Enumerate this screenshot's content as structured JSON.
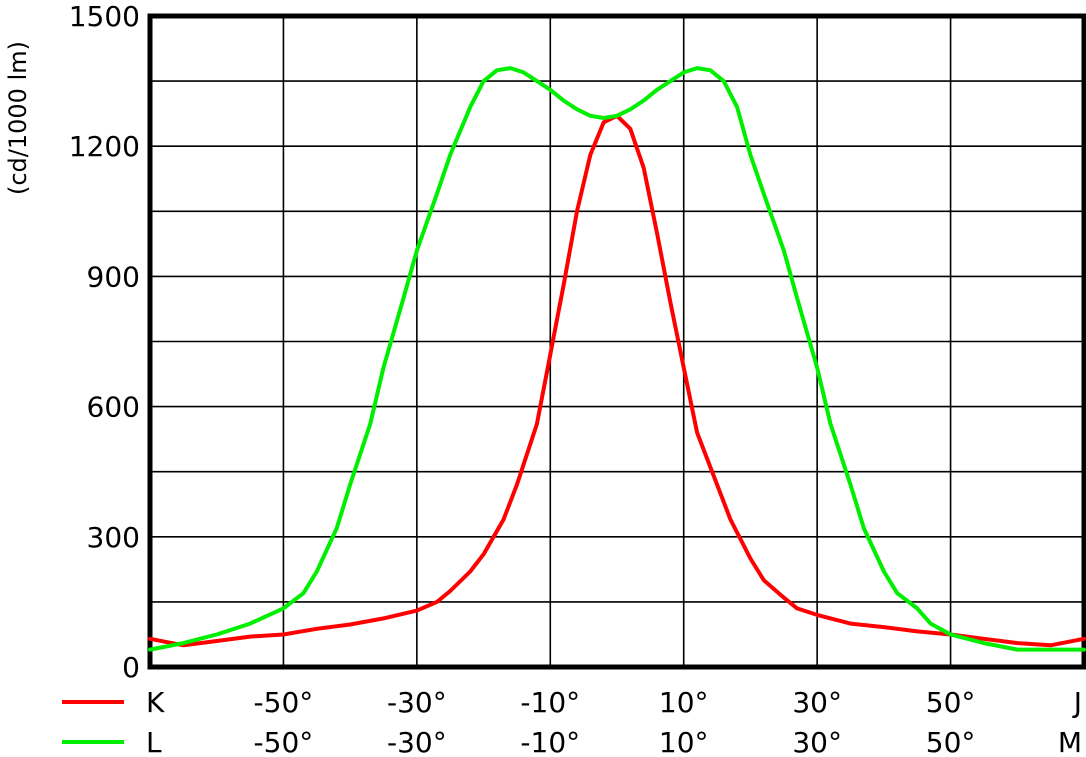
{
  "chart_data": {
    "type": "line",
    "title": "",
    "xlabel": "",
    "ylabel": "(cd/1000 lm)",
    "xlim": [
      -70,
      70
    ],
    "ylim": [
      0,
      1500
    ],
    "grid": true,
    "y_ticks": [
      0,
      300,
      600,
      900,
      1200,
      1500
    ],
    "x_ticks": [
      -50,
      -30,
      -10,
      10,
      30,
      50
    ],
    "tick_rows": [
      {
        "legend_name": "K",
        "color": "#ff0000",
        "labels": [
          "-50°",
          "-30°",
          "-10°",
          "10°",
          "30°",
          "50°"
        ],
        "end_label": "J"
      },
      {
        "legend_name": "L",
        "color": "#00ee00",
        "labels": [
          "-50°",
          "-30°",
          "-10°",
          "10°",
          "30°",
          "50°"
        ],
        "end_label": "M"
      }
    ],
    "series": [
      {
        "name": "K",
        "color": "#ff0000",
        "x": [
          -70,
          -65,
          -60,
          -55,
          -50,
          -45,
          -40,
          -35,
          -30,
          -27,
          -25,
          -22,
          -20,
          -17,
          -15,
          -12,
          -10,
          -8,
          -6,
          -4,
          -2,
          0,
          2,
          4,
          6,
          8,
          10,
          12,
          15,
          17,
          20,
          22,
          25,
          27,
          30,
          35,
          40,
          45,
          50,
          55,
          60,
          65,
          70
        ],
        "y": [
          65,
          50,
          60,
          70,
          75,
          88,
          98,
          112,
          130,
          150,
          175,
          220,
          260,
          340,
          420,
          560,
          720,
          880,
          1050,
          1180,
          1255,
          1270,
          1240,
          1150,
          1000,
          840,
          690,
          540,
          420,
          340,
          250,
          200,
          160,
          135,
          120,
          100,
          92,
          82,
          75,
          65,
          55,
          50,
          65
        ]
      },
      {
        "name": "L",
        "color": "#00ee00",
        "x": [
          -70,
          -65,
          -60,
          -55,
          -50,
          -47,
          -45,
          -42,
          -40,
          -37,
          -35,
          -32,
          -30,
          -27,
          -25,
          -22,
          -20,
          -18,
          -16,
          -14,
          -12,
          -10,
          -8,
          -6,
          -4,
          -2,
          0,
          2,
          4,
          6,
          8,
          10,
          12,
          14,
          16,
          18,
          20,
          22,
          25,
          27,
          30,
          32,
          35,
          37,
          40,
          42,
          45,
          47,
          50,
          55,
          60,
          65,
          70
        ],
        "y": [
          40,
          55,
          75,
          100,
          135,
          170,
          220,
          320,
          420,
          560,
          690,
          850,
          960,
          1090,
          1180,
          1290,
          1350,
          1375,
          1380,
          1370,
          1350,
          1330,
          1305,
          1285,
          1270,
          1265,
          1270,
          1285,
          1305,
          1330,
          1350,
          1370,
          1380,
          1375,
          1350,
          1290,
          1180,
          1090,
          960,
          850,
          690,
          560,
          420,
          320,
          220,
          170,
          135,
          100,
          75,
          55,
          40,
          40,
          40
        ]
      }
    ]
  }
}
